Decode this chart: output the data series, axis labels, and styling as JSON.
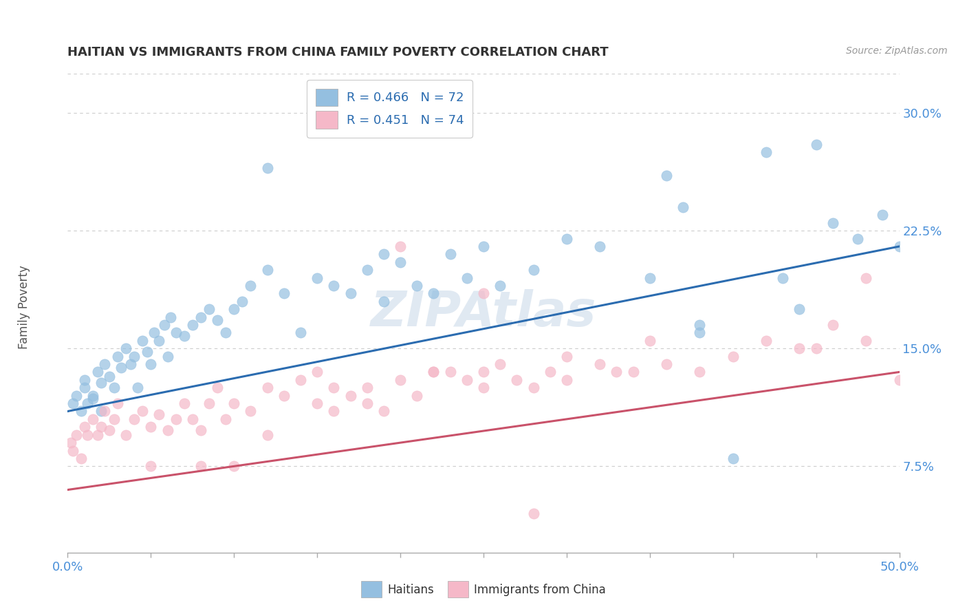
{
  "title": "HAITIAN VS IMMIGRANTS FROM CHINA FAMILY POVERTY CORRELATION CHART",
  "source_text": "Source: ZipAtlas.com",
  "ylabel": "Family Poverty",
  "xmin": 0.0,
  "xmax": 50.0,
  "ymin": 2.0,
  "ymax": 32.5,
  "yticks": [
    7.5,
    15.0,
    22.5,
    30.0
  ],
  "ytick_labels": [
    "7.5%",
    "15.0%",
    "22.5%",
    "30.0%"
  ],
  "xtick_left_label": "0.0%",
  "xtick_right_label": "50.0%",
  "legend_line1": "R = 0.466   N = 72",
  "legend_line2": "R = 0.451   N = 74",
  "blue_color": "#94bfe0",
  "blue_line_color": "#2b6cb0",
  "pink_color": "#f5b8c8",
  "pink_line_color": "#c9526a",
  "label1": "Haitians",
  "label2": "Immigrants from China",
  "watermark": "ZIPAtlas",
  "background_color": "#ffffff",
  "grid_color": "#cccccc",
  "blue_trend_start": 11.0,
  "blue_trend_end": 21.5,
  "pink_trend_start": 6.0,
  "pink_trend_end": 13.5,
  "blue_scatter_x": [
    0.3,
    0.5,
    0.8,
    1.0,
    1.0,
    1.2,
    1.5,
    1.5,
    1.8,
    2.0,
    2.0,
    2.2,
    2.5,
    2.8,
    3.0,
    3.2,
    3.5,
    3.8,
    4.0,
    4.2,
    4.5,
    4.8,
    5.0,
    5.2,
    5.5,
    5.8,
    6.0,
    6.2,
    6.5,
    7.0,
    7.5,
    8.0,
    8.5,
    9.0,
    9.5,
    10.0,
    10.5,
    11.0,
    12.0,
    13.0,
    14.0,
    15.0,
    16.0,
    17.0,
    18.0,
    19.0,
    20.0,
    21.0,
    22.0,
    23.0,
    24.0,
    25.0,
    26.0,
    28.0,
    30.0,
    32.0,
    35.0,
    36.0,
    38.0,
    40.0,
    42.0,
    43.0,
    44.0,
    45.0,
    46.0,
    47.5,
    49.0,
    50.0,
    38.0,
    37.0,
    12.0,
    19.0
  ],
  "blue_scatter_y": [
    11.5,
    12.0,
    11.0,
    12.5,
    13.0,
    11.5,
    12.0,
    11.8,
    13.5,
    12.8,
    11.0,
    14.0,
    13.2,
    12.5,
    14.5,
    13.8,
    15.0,
    14.0,
    14.5,
    12.5,
    15.5,
    14.8,
    14.0,
    16.0,
    15.5,
    16.5,
    14.5,
    17.0,
    16.0,
    15.8,
    16.5,
    17.0,
    17.5,
    16.8,
    16.0,
    17.5,
    18.0,
    19.0,
    20.0,
    18.5,
    16.0,
    19.5,
    19.0,
    18.5,
    20.0,
    18.0,
    20.5,
    19.0,
    18.5,
    21.0,
    19.5,
    21.5,
    19.0,
    20.0,
    22.0,
    21.5,
    19.5,
    26.0,
    16.5,
    8.0,
    27.5,
    19.5,
    17.5,
    28.0,
    23.0,
    22.0,
    23.5,
    21.5,
    16.0,
    24.0,
    26.5,
    21.0
  ],
  "pink_scatter_x": [
    0.2,
    0.3,
    0.5,
    0.8,
    1.0,
    1.2,
    1.5,
    1.8,
    2.0,
    2.2,
    2.5,
    2.8,
    3.0,
    3.5,
    4.0,
    4.5,
    5.0,
    5.5,
    6.0,
    6.5,
    7.0,
    7.5,
    8.0,
    8.5,
    9.0,
    9.5,
    10.0,
    11.0,
    12.0,
    13.0,
    14.0,
    15.0,
    16.0,
    17.0,
    18.0,
    19.0,
    20.0,
    21.0,
    22.0,
    23.0,
    24.0,
    25.0,
    26.0,
    27.0,
    28.0,
    29.0,
    30.0,
    32.0,
    34.0,
    36.0,
    38.0,
    40.0,
    42.0,
    44.0,
    46.0,
    48.0,
    50.0,
    35.0,
    20.0,
    15.0,
    25.0,
    45.0,
    10.0,
    5.0,
    30.0,
    22.0,
    18.0,
    28.0,
    12.0,
    8.0,
    33.0,
    16.0,
    48.0,
    25.0
  ],
  "pink_scatter_y": [
    9.0,
    8.5,
    9.5,
    8.0,
    10.0,
    9.5,
    10.5,
    9.5,
    10.0,
    11.0,
    9.8,
    10.5,
    11.5,
    9.5,
    10.5,
    11.0,
    10.0,
    10.8,
    9.8,
    10.5,
    11.5,
    10.5,
    9.8,
    11.5,
    12.5,
    10.5,
    11.5,
    11.0,
    12.5,
    12.0,
    13.0,
    11.5,
    12.5,
    12.0,
    12.5,
    11.0,
    13.0,
    12.0,
    13.5,
    13.5,
    13.0,
    12.5,
    14.0,
    13.0,
    4.5,
    13.5,
    14.5,
    14.0,
    13.5,
    14.0,
    13.5,
    14.5,
    15.5,
    15.0,
    16.5,
    15.5,
    13.0,
    15.5,
    21.5,
    13.5,
    18.5,
    15.0,
    7.5,
    7.5,
    13.0,
    13.5,
    11.5,
    12.5,
    9.5,
    7.5,
    13.5,
    11.0,
    19.5,
    13.5
  ]
}
